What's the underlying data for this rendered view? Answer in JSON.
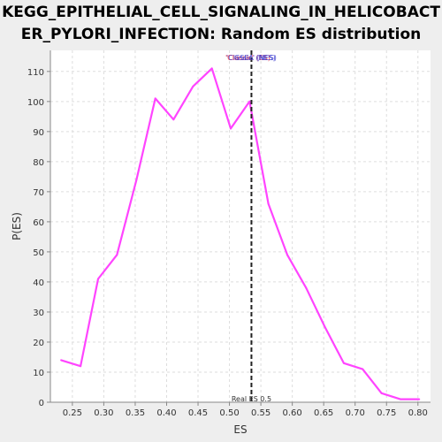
{
  "chart_data": {
    "type": "line",
    "title_lines": [
      "KEGG_EPITHELIAL_CELL_SIGNALING_IN_HELICOBACT",
      "ER_PYLORI_INFECTION: Random ES distribution"
    ],
    "xlabel": "ES",
    "ylabel": "P(ES)",
    "xlim": [
      0.215,
      0.82
    ],
    "ylim": [
      0,
      117
    ],
    "x_ticks": [
      0.25,
      0.3,
      0.35,
      0.4,
      0.45,
      0.5,
      0.55,
      0.6,
      0.65,
      0.7,
      0.75,
      0.8
    ],
    "x_tick_labels": [
      "0.25",
      "0.30",
      "0.35",
      "0.40",
      "0.45",
      "0.50",
      "0.55",
      "0.60",
      "0.65",
      "0.70",
      "0.75",
      "0.80"
    ],
    "y_ticks": [
      0,
      10,
      20,
      30,
      40,
      50,
      60,
      70,
      80,
      90,
      100,
      110
    ],
    "y_tick_labels": [
      "0",
      "10",
      "20",
      "30",
      "40",
      "50",
      "60",
      "70",
      "80",
      "90",
      "100",
      "110"
    ],
    "grid": true,
    "series": [
      {
        "color": "#ff44ff",
        "x": [
          0.232,
          0.263,
          0.291,
          0.321,
          0.352,
          0.382,
          0.411,
          0.442,
          0.472,
          0.502,
          0.532,
          0.562,
          0.592,
          0.622,
          0.652,
          0.682,
          0.712,
          0.742,
          0.772,
          0.802
        ],
        "y": [
          14,
          12,
          41,
          49,
          74,
          101,
          94,
          105,
          111,
          91,
          100,
          66,
          49,
          38,
          25,
          13,
          11,
          3,
          1,
          1
        ]
      }
    ],
    "real_es": 0.535,
    "real_es_label": "Real ES 0.5",
    "annotations": [
      {
        "text": "'Classic' (ES)",
        "color": "#ff2222"
      },
      {
        "text": "'Classic' (NES)",
        "color": "#3333cc"
      },
      {
        "text": "GSEA (NES)",
        "color": "#3333cc"
      }
    ]
  }
}
